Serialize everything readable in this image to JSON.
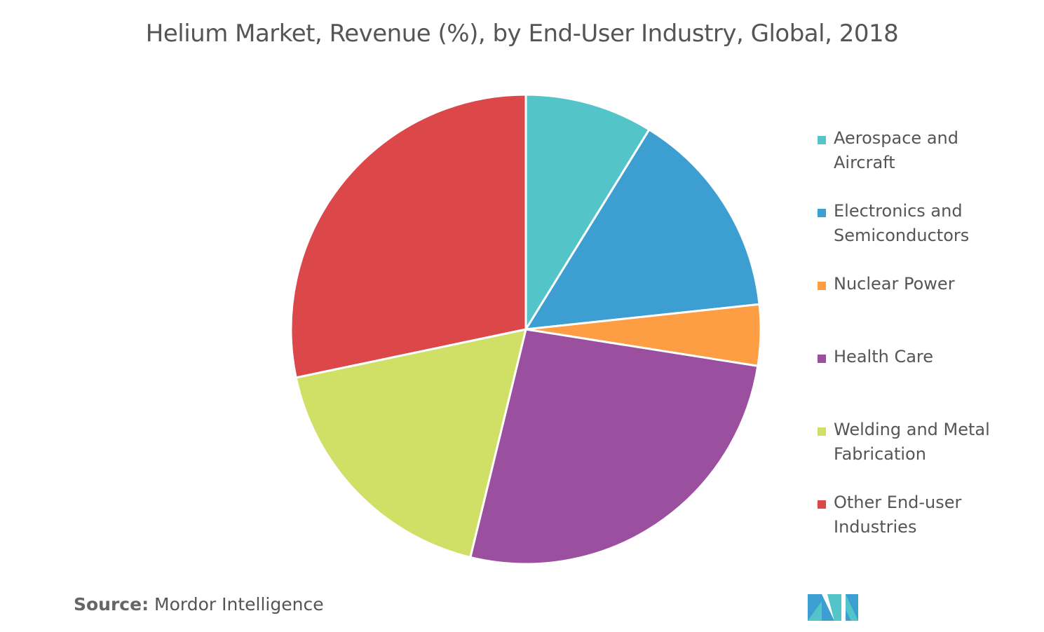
{
  "chart_data": {
    "type": "pie",
    "title": "Helium Market, Revenue (%), by End-User Industry, Global, 2018",
    "categories": [
      "Aerospace and Aircraft",
      "Electronics and Semiconductors",
      "Nuclear Power",
      "Health Care",
      "Welding and Metal Fabrication",
      "Other End-user Industries"
    ],
    "values": [
      8.8,
      14.5,
      4.2,
      26.3,
      17.9,
      28.3
    ],
    "colors": [
      "#53c4c8",
      "#3d9fd1",
      "#fd9e44",
      "#9b4f9f",
      "#d0df65",
      "#dc4849"
    ],
    "legend": "right",
    "source": {
      "label": "Source:",
      "text": "Mordor Intelligence"
    }
  }
}
